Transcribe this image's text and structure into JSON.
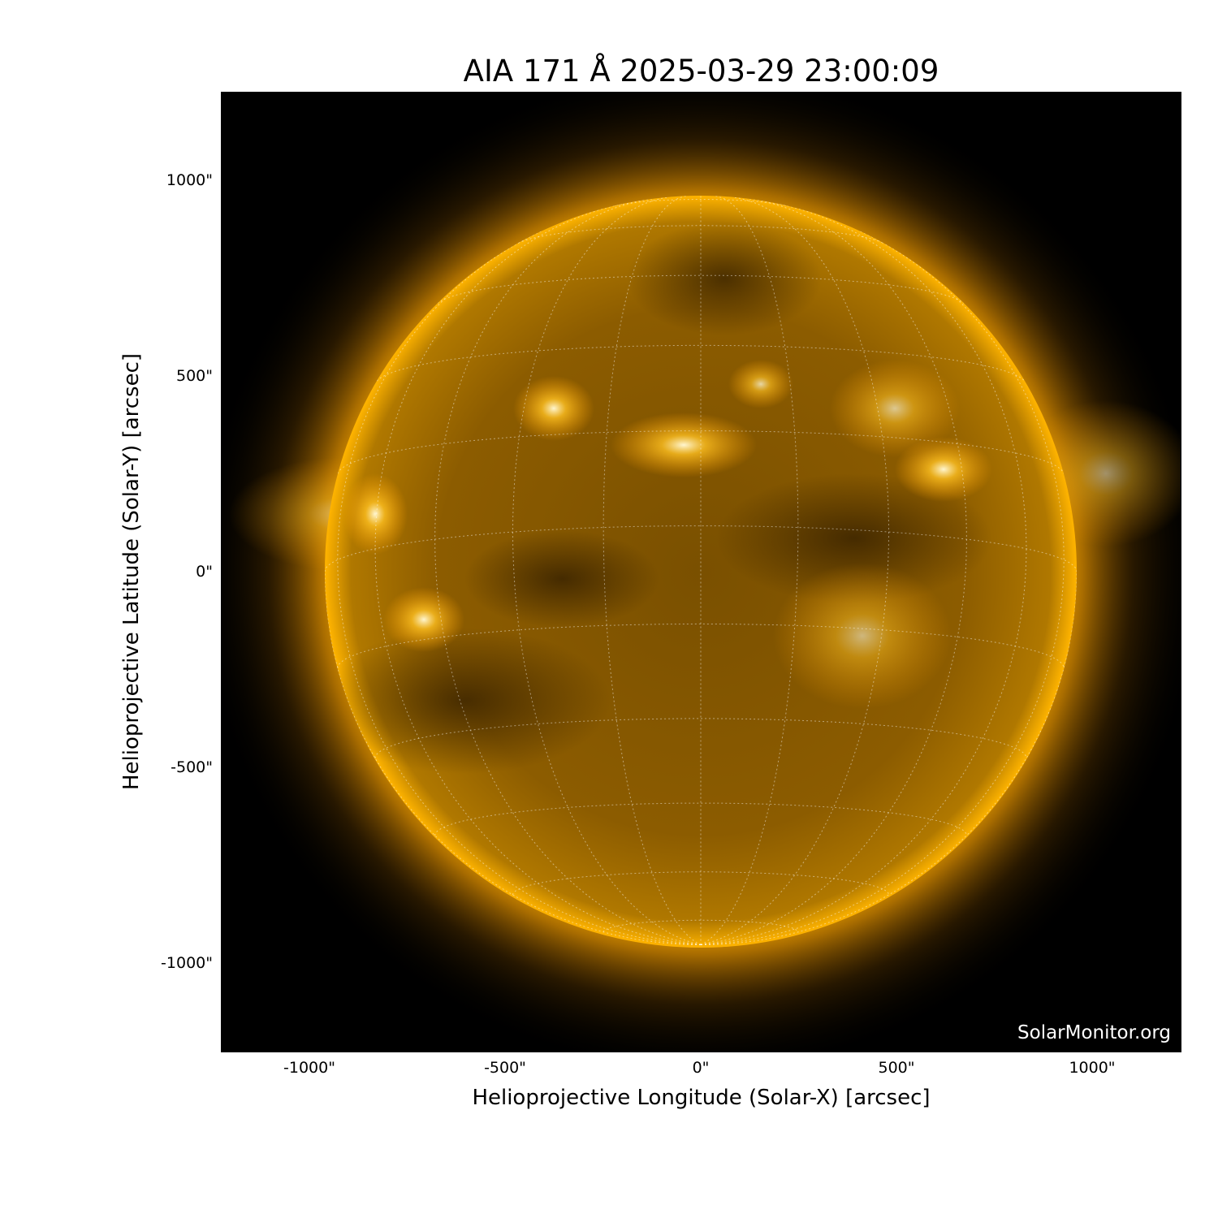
{
  "title": "AIA 171 Å 2025-03-29 23:00:09",
  "xlabel": "Helioprojective Longitude (Solar-X) [arcsec]",
  "ylabel": "Helioprojective Latitude (Solar-Y) [arcsec]",
  "x_ticks": [
    "-1000\"",
    "-500\"",
    "0\"",
    "500\"",
    "1000\""
  ],
  "y_ticks": [
    "1000\"",
    "500\"",
    "0\"",
    "-500\"",
    "-1000\""
  ],
  "credit": "SolarMonitor.org",
  "colors": {
    "background": "#000000",
    "sun_core": "#8a5a00",
    "limb": "#ffb000",
    "grid": "#ffffff"
  },
  "image": {
    "instrument": "AIA",
    "wavelength": "171 Å",
    "colormap": "sdoaia171"
  }
}
